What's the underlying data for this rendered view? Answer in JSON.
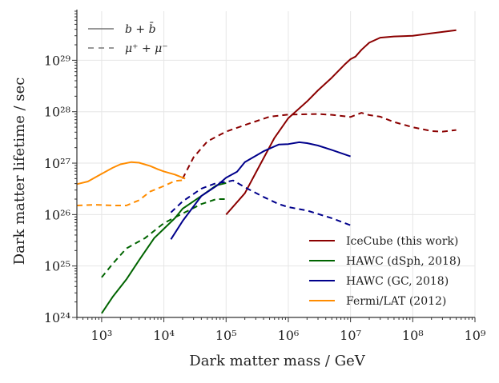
{
  "chart_data": {
    "type": "line",
    "xlabel": "Dark matter mass / GeV",
    "ylabel": "Dark matter lifetime / sec",
    "xscale": "log",
    "yscale": "log",
    "xlim": [
      400,
      1000000000
    ],
    "ylim": [
      1e+24,
      9e+29
    ],
    "grid": true,
    "x_tick_labels": [
      "10³",
      "10⁴",
      "10⁵",
      "10⁶",
      "10⁷",
      "10⁸",
      "10⁹"
    ],
    "y_tick_labels": [
      "10²⁴",
      "10²⁵",
      "10²⁶",
      "10²⁷",
      "10²⁸",
      "10²⁹"
    ],
    "style_legend": {
      "placement": "top-left",
      "entries": [
        {
          "label": "b + b̄",
          "dash": "solid"
        },
        {
          "label": "μ⁺ + μ⁻",
          "dash": "dashed"
        }
      ]
    },
    "experiment_legend": {
      "placement": "lower-right",
      "entries": [
        {
          "label": "IceCube (this work)",
          "color": "#8b0000"
        },
        {
          "label": "HAWC (dSph, 2018)",
          "color": "#006400"
        },
        {
          "label": "HAWC (GC, 2018)",
          "color": "#00008b"
        },
        {
          "label": "Fermi/LAT (2012)",
          "color": "#ff8c00"
        }
      ]
    },
    "series": [
      {
        "experiment": "IceCube (this work)",
        "channel": "b + b̄",
        "color": "#8b0000",
        "dash": "solid",
        "points": [
          [
            100000,
            1e+26
          ],
          [
            200000,
            2.6e+26
          ],
          [
            300000,
            6.5e+26
          ],
          [
            600000,
            3.1e+27
          ],
          [
            1000000,
            7.5e+27
          ],
          [
            2000000,
            1.58e+28
          ],
          [
            3000000,
            2.6e+28
          ],
          [
            5000000,
            4.6e+28
          ],
          [
            8000000,
            8.2e+28
          ],
          [
            10000000,
            1.05e+29
          ],
          [
            12000000,
            1.18e+29
          ],
          [
            15000000,
            1.6e+29
          ],
          [
            20000000,
            2.2e+29
          ],
          [
            30000000,
            2.75e+29
          ],
          [
            50000000,
            2.9e+29
          ],
          [
            100000000,
            3e+29
          ],
          [
            200000000,
            3.35e+29
          ],
          [
            500000000,
            3.85e+29
          ]
        ]
      },
      {
        "experiment": "IceCube (this work)",
        "channel": "μ⁺ + μ⁻",
        "color": "#8b0000",
        "dash": "dashed",
        "points": [
          [
            20000,
            5e+26
          ],
          [
            30000,
            1.3e+27
          ],
          [
            50000,
            2.65e+27
          ],
          [
            100000,
            4.1e+27
          ],
          [
            200000,
            5.5e+27
          ],
          [
            500000,
            8e+27
          ],
          [
            1000000,
            8.8e+27
          ],
          [
            3000000,
            9e+27
          ],
          [
            5000000,
            8.7e+27
          ],
          [
            10000000,
            7.9e+27
          ],
          [
            15000000,
            9.5e+27
          ],
          [
            20000000,
            8.6e+27
          ],
          [
            30000000,
            8e+27
          ],
          [
            50000000,
            6.3e+27
          ],
          [
            100000000,
            5e+27
          ],
          [
            200000000,
            4.2e+27
          ],
          [
            300000000,
            4.1e+27
          ],
          [
            500000000,
            4.4e+27
          ]
        ]
      },
      {
        "experiment": "HAWC (dSph, 2018)",
        "channel": "b + b̄",
        "color": "#006400",
        "dash": "solid",
        "points": [
          [
            1000,
            1.2e+24
          ],
          [
            1500,
            2.5e+24
          ],
          [
            2500,
            5.5e+24
          ],
          [
            4000,
            1.3e+25
          ],
          [
            7000,
            3.5e+25
          ],
          [
            10000,
            5.3e+25
          ],
          [
            15000,
            8.5e+25
          ],
          [
            20000,
            1.3e+26
          ],
          [
            40000,
            2.3e+26
          ],
          [
            70000,
            3.7e+26
          ],
          [
            100000,
            4.1e+26
          ]
        ]
      },
      {
        "experiment": "HAWC (dSph, 2018)",
        "channel": "μ⁺ + μ⁻",
        "color": "#006400",
        "dash": "dashed",
        "points": [
          [
            1000,
            6e+24
          ],
          [
            1500,
            1.1e+25
          ],
          [
            2500,
            2.2e+25
          ],
          [
            5000,
            3.5e+25
          ],
          [
            10000,
            6.8e+25
          ],
          [
            20000,
            1.05e+26
          ],
          [
            40000,
            1.6e+26
          ],
          [
            70000,
            2e+26
          ],
          [
            100000,
            2e+26
          ]
        ]
      },
      {
        "experiment": "HAWC (GC, 2018)",
        "channel": "b + b̄",
        "color": "#00008b",
        "dash": "solid",
        "points": [
          [
            13000,
            3.3e+25
          ],
          [
            20000,
            7.5e+25
          ],
          [
            40000,
            2.3e+26
          ],
          [
            70000,
            3.6e+26
          ],
          [
            100000,
            5.2e+26
          ],
          [
            150000,
            6.8e+26
          ],
          [
            200000,
            1.05e+27
          ],
          [
            400000,
            1.7e+27
          ],
          [
            700000,
            2.3e+27
          ],
          [
            1000000,
            2.35e+27
          ],
          [
            1500000,
            2.55e+27
          ],
          [
            2000000,
            2.45e+27
          ],
          [
            3000000,
            2.2e+27
          ],
          [
            5000000,
            1.8e+27
          ],
          [
            10000000,
            1.35e+27
          ]
        ]
      },
      {
        "experiment": "HAWC (GC, 2018)",
        "channel": "μ⁺ + μ⁻",
        "color": "#00008b",
        "dash": "dashed",
        "points": [
          [
            13000,
            1.1e+26
          ],
          [
            20000,
            1.8e+26
          ],
          [
            40000,
            3.2e+26
          ],
          [
            70000,
            4.1e+26
          ],
          [
            100000,
            4.3e+26
          ],
          [
            130000,
            4.6e+26
          ],
          [
            200000,
            3.4e+26
          ],
          [
            400000,
            2.2e+26
          ],
          [
            700000,
            1.6e+26
          ],
          [
            1000000,
            1.4e+26
          ],
          [
            2000000,
            1.2e+26
          ],
          [
            5000000,
            8.5e+25
          ],
          [
            10000000,
            6.2e+25
          ]
        ]
      },
      {
        "experiment": "Fermi/LAT (2012)",
        "channel": "b + b̄",
        "color": "#ff8c00",
        "dash": "solid",
        "points": [
          [
            400,
            3.9e+26
          ],
          [
            600,
            4.4e+26
          ],
          [
            1000,
            6.2e+26
          ],
          [
            1500,
            8.1e+26
          ],
          [
            2000,
            9.5e+26
          ],
          [
            3000,
            1.05e+27
          ],
          [
            4000,
            1.02e+27
          ],
          [
            6000,
            8.8e+26
          ],
          [
            8000,
            7.6e+26
          ],
          [
            10000,
            6.9e+26
          ],
          [
            15000,
            6e+26
          ],
          [
            22000,
            5e+26
          ]
        ]
      },
      {
        "experiment": "Fermi/LAT (2012)",
        "channel": "μ⁺ + μ⁻",
        "color": "#ff8c00",
        "dash": "dashed",
        "points": [
          [
            400,
            1.5e+26
          ],
          [
            800,
            1.55e+26
          ],
          [
            1500,
            1.5e+26
          ],
          [
            2500,
            1.5e+26
          ],
          [
            4000,
            1.9e+26
          ],
          [
            6000,
            2.8e+26
          ],
          [
            10000,
            3.6e+26
          ],
          [
            15000,
            4.5e+26
          ],
          [
            22000,
            4.7e+26
          ]
        ]
      }
    ]
  }
}
